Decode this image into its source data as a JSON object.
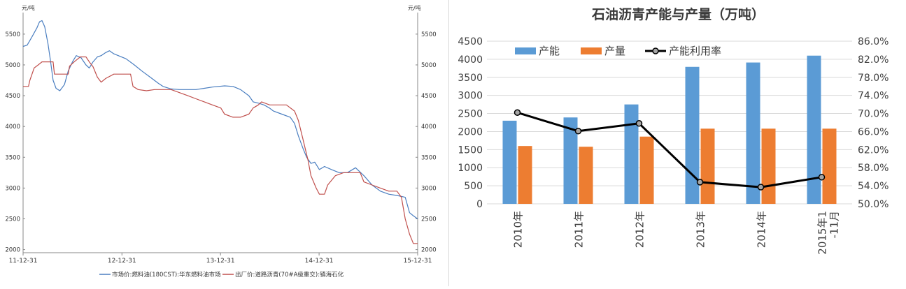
{
  "chart_data": [
    {
      "type": "line",
      "title": "",
      "unit_left": "元/吨",
      "unit_right": "元/吨",
      "ylim": [
        1950,
        5850
      ],
      "yticks": [
        2000,
        2500,
        3000,
        3500,
        4000,
        4500,
        5000,
        5500
      ],
      "xlim": [
        "2011-12-31",
        "2015-12-31"
      ],
      "xticks": [
        "11-12-31",
        "12-12-31",
        "13-12-31",
        "14-12-31",
        "15-12-31"
      ],
      "grid": false,
      "legend_position": "bottom",
      "series": [
        {
          "name": "市场价:燃料油(180CST):华东燃料油市场",
          "color": "#4a7ec0",
          "points": [
            [
              "2011-12-31",
              5300
            ],
            [
              "2012-01-15",
              5320
            ],
            [
              "2012-02-01",
              5450
            ],
            [
              "2012-02-20",
              5600
            ],
            [
              "2012-03-01",
              5700
            ],
            [
              "2012-03-10",
              5720
            ],
            [
              "2012-03-20",
              5620
            ],
            [
              "2012-04-01",
              5350
            ],
            [
              "2012-04-10",
              5080
            ],
            [
              "2012-04-20",
              4750
            ],
            [
              "2012-05-01",
              4620
            ],
            [
              "2012-05-15",
              4580
            ],
            [
              "2012-06-01",
              4680
            ],
            [
              "2012-06-15",
              4900
            ],
            [
              "2012-07-01",
              5050
            ],
            [
              "2012-07-15",
              5150
            ],
            [
              "2012-08-01",
              5120
            ],
            [
              "2012-08-20",
              5000
            ],
            [
              "2012-09-01",
              4950
            ],
            [
              "2012-09-15",
              5050
            ],
            [
              "2012-10-01",
              5130
            ],
            [
              "2012-10-15",
              5150
            ],
            [
              "2012-11-01",
              5200
            ],
            [
              "2012-11-15",
              5230
            ],
            [
              "2012-12-01",
              5180
            ],
            [
              "2013-01-15",
              5100
            ],
            [
              "2013-02-15",
              5000
            ],
            [
              "2013-03-15",
              4900
            ],
            [
              "2013-04-15",
              4800
            ],
            [
              "2013-05-15",
              4700
            ],
            [
              "2013-06-01",
              4650
            ],
            [
              "2013-07-01",
              4610
            ],
            [
              "2013-08-01",
              4600
            ],
            [
              "2013-09-01",
              4600
            ],
            [
              "2013-10-01",
              4600
            ],
            [
              "2013-11-01",
              4620
            ],
            [
              "2013-12-01",
              4640
            ],
            [
              "2014-01-15",
              4660
            ],
            [
              "2014-02-15",
              4650
            ],
            [
              "2014-03-15",
              4600
            ],
            [
              "2014-04-15",
              4500
            ],
            [
              "2014-05-01",
              4400
            ],
            [
              "2014-05-20",
              4380
            ],
            [
              "2014-06-10",
              4350
            ],
            [
              "2014-06-30",
              4300
            ],
            [
              "2014-07-15",
              4250
            ],
            [
              "2014-08-15",
              4200
            ],
            [
              "2014-09-15",
              4150
            ],
            [
              "2014-10-01",
              4050
            ],
            [
              "2014-10-15",
              3850
            ],
            [
              "2014-11-01",
              3650
            ],
            [
              "2014-11-15",
              3500
            ],
            [
              "2014-12-01",
              3400
            ],
            [
              "2014-12-15",
              3420
            ],
            [
              "2015-01-01",
              3300
            ],
            [
              "2015-01-20",
              3350
            ],
            [
              "2015-02-15",
              3300
            ],
            [
              "2015-03-15",
              3250
            ],
            [
              "2015-04-15",
              3250
            ],
            [
              "2015-05-15",
              3330
            ],
            [
              "2015-06-15",
              3200
            ],
            [
              "2015-07-15",
              3050
            ],
            [
              "2015-08-15",
              2950
            ],
            [
              "2015-09-15",
              2900
            ],
            [
              "2015-10-15",
              2880
            ],
            [
              "2015-11-15",
              2850
            ],
            [
              "2015-12-01",
              2600
            ],
            [
              "2015-12-15",
              2550
            ],
            [
              "2015-12-31",
              2500
            ]
          ]
        },
        {
          "name": "出厂价:道路沥青(70#A级重交):镇海石化",
          "color": "#c0504d",
          "points": [
            [
              "2011-12-31",
              4650
            ],
            [
              "2012-01-20",
              4650
            ],
            [
              "2012-01-25",
              4750
            ],
            [
              "2012-02-10",
              4950
            ],
            [
              "2012-02-25",
              5000
            ],
            [
              "2012-03-10",
              5050
            ],
            [
              "2012-04-01",
              5050
            ],
            [
              "2012-04-20",
              5050
            ],
            [
              "2012-04-25",
              4850
            ],
            [
              "2012-06-15",
              4850
            ],
            [
              "2012-06-20",
              4980
            ],
            [
              "2012-07-10",
              5060
            ],
            [
              "2012-07-30",
              5130
            ],
            [
              "2012-08-20",
              5130
            ],
            [
              "2012-09-01",
              5050
            ],
            [
              "2012-09-15",
              4970
            ],
            [
              "2012-10-01",
              4800
            ],
            [
              "2012-10-15",
              4720
            ],
            [
              "2012-11-01",
              4780
            ],
            [
              "2012-12-01",
              4850
            ],
            [
              "2013-01-01",
              4850
            ],
            [
              "2013-02-01",
              4850
            ],
            [
              "2013-02-10",
              4650
            ],
            [
              "2013-03-01",
              4600
            ],
            [
              "2013-04-01",
              4580
            ],
            [
              "2013-05-01",
              4600
            ],
            [
              "2013-06-01",
              4600
            ],
            [
              "2013-07-01",
              4600
            ],
            [
              "2013-08-01",
              4550
            ],
            [
              "2013-09-01",
              4500
            ],
            [
              "2013-10-01",
              4450
            ],
            [
              "2013-11-01",
              4400
            ],
            [
              "2013-12-01",
              4350
            ],
            [
              "2014-01-01",
              4300
            ],
            [
              "2014-01-15",
              4200
            ],
            [
              "2014-02-15",
              4150
            ],
            [
              "2014-03-15",
              4150
            ],
            [
              "2014-04-15",
              4200
            ],
            [
              "2014-05-01",
              4300
            ],
            [
              "2014-05-20",
              4350
            ],
            [
              "2014-06-01",
              4400
            ],
            [
              "2014-07-01",
              4350
            ],
            [
              "2014-08-01",
              4350
            ],
            [
              "2014-09-01",
              4350
            ],
            [
              "2014-10-01",
              4250
            ],
            [
              "2014-10-15",
              4100
            ],
            [
              "2014-11-01",
              3800
            ],
            [
              "2014-11-20",
              3450
            ],
            [
              "2014-12-01",
              3200
            ],
            [
              "2014-12-20",
              3000
            ],
            [
              "2015-01-01",
              2900
            ],
            [
              "2015-01-20",
              2900
            ],
            [
              "2015-02-01",
              3050
            ],
            [
              "2015-03-01",
              3200
            ],
            [
              "2015-04-01",
              3250
            ],
            [
              "2015-05-01",
              3250
            ],
            [
              "2015-06-01",
              3250
            ],
            [
              "2015-06-15",
              3100
            ],
            [
              "2015-07-15",
              3050
            ],
            [
              "2015-08-15",
              3000
            ],
            [
              "2015-09-15",
              2950
            ],
            [
              "2015-10-15",
              2950
            ],
            [
              "2015-11-01",
              2850
            ],
            [
              "2015-11-15",
              2500
            ],
            [
              "2015-12-01",
              2250
            ],
            [
              "2015-12-15",
              2100
            ],
            [
              "2015-12-31",
              2100
            ]
          ]
        }
      ]
    },
    {
      "type": "bar",
      "title": "石油沥青产能与产量（万吨）",
      "categories": [
        "2010年",
        "2011年",
        "2012年",
        "2013年",
        "2014年",
        "2015年1-11月"
      ],
      "ylim_left": [
        0,
        4500
      ],
      "yticks_left": [
        "0",
        "500",
        "1000",
        "1500",
        "2000",
        "2500",
        "3000",
        "3500",
        "4000",
        "4500"
      ],
      "ylim_right": [
        50.0,
        86.0
      ],
      "yticks_right": [
        "50.0%",
        "54.0%",
        "58.0%",
        "62.0%",
        "66.0%",
        "70.0%",
        "74.0%",
        "78.0%",
        "82.0%",
        "86.0%"
      ],
      "grid": true,
      "legend_position": "top-left",
      "series": [
        {
          "name": "产能",
          "type": "bar",
          "axis": "left",
          "color": "#5b9bd5",
          "values": [
            2300,
            2390,
            2750,
            3790,
            3910,
            4100
          ]
        },
        {
          "name": "产量",
          "type": "bar",
          "axis": "left",
          "color": "#ed7d31",
          "values": [
            1600,
            1580,
            1860,
            2080,
            2080,
            2080
          ]
        },
        {
          "name": "产能利用率",
          "type": "line",
          "axis": "right",
          "color": "#000000",
          "values": [
            70.2,
            66.1,
            67.8,
            54.8,
            53.7,
            55.9
          ]
        }
      ]
    }
  ]
}
